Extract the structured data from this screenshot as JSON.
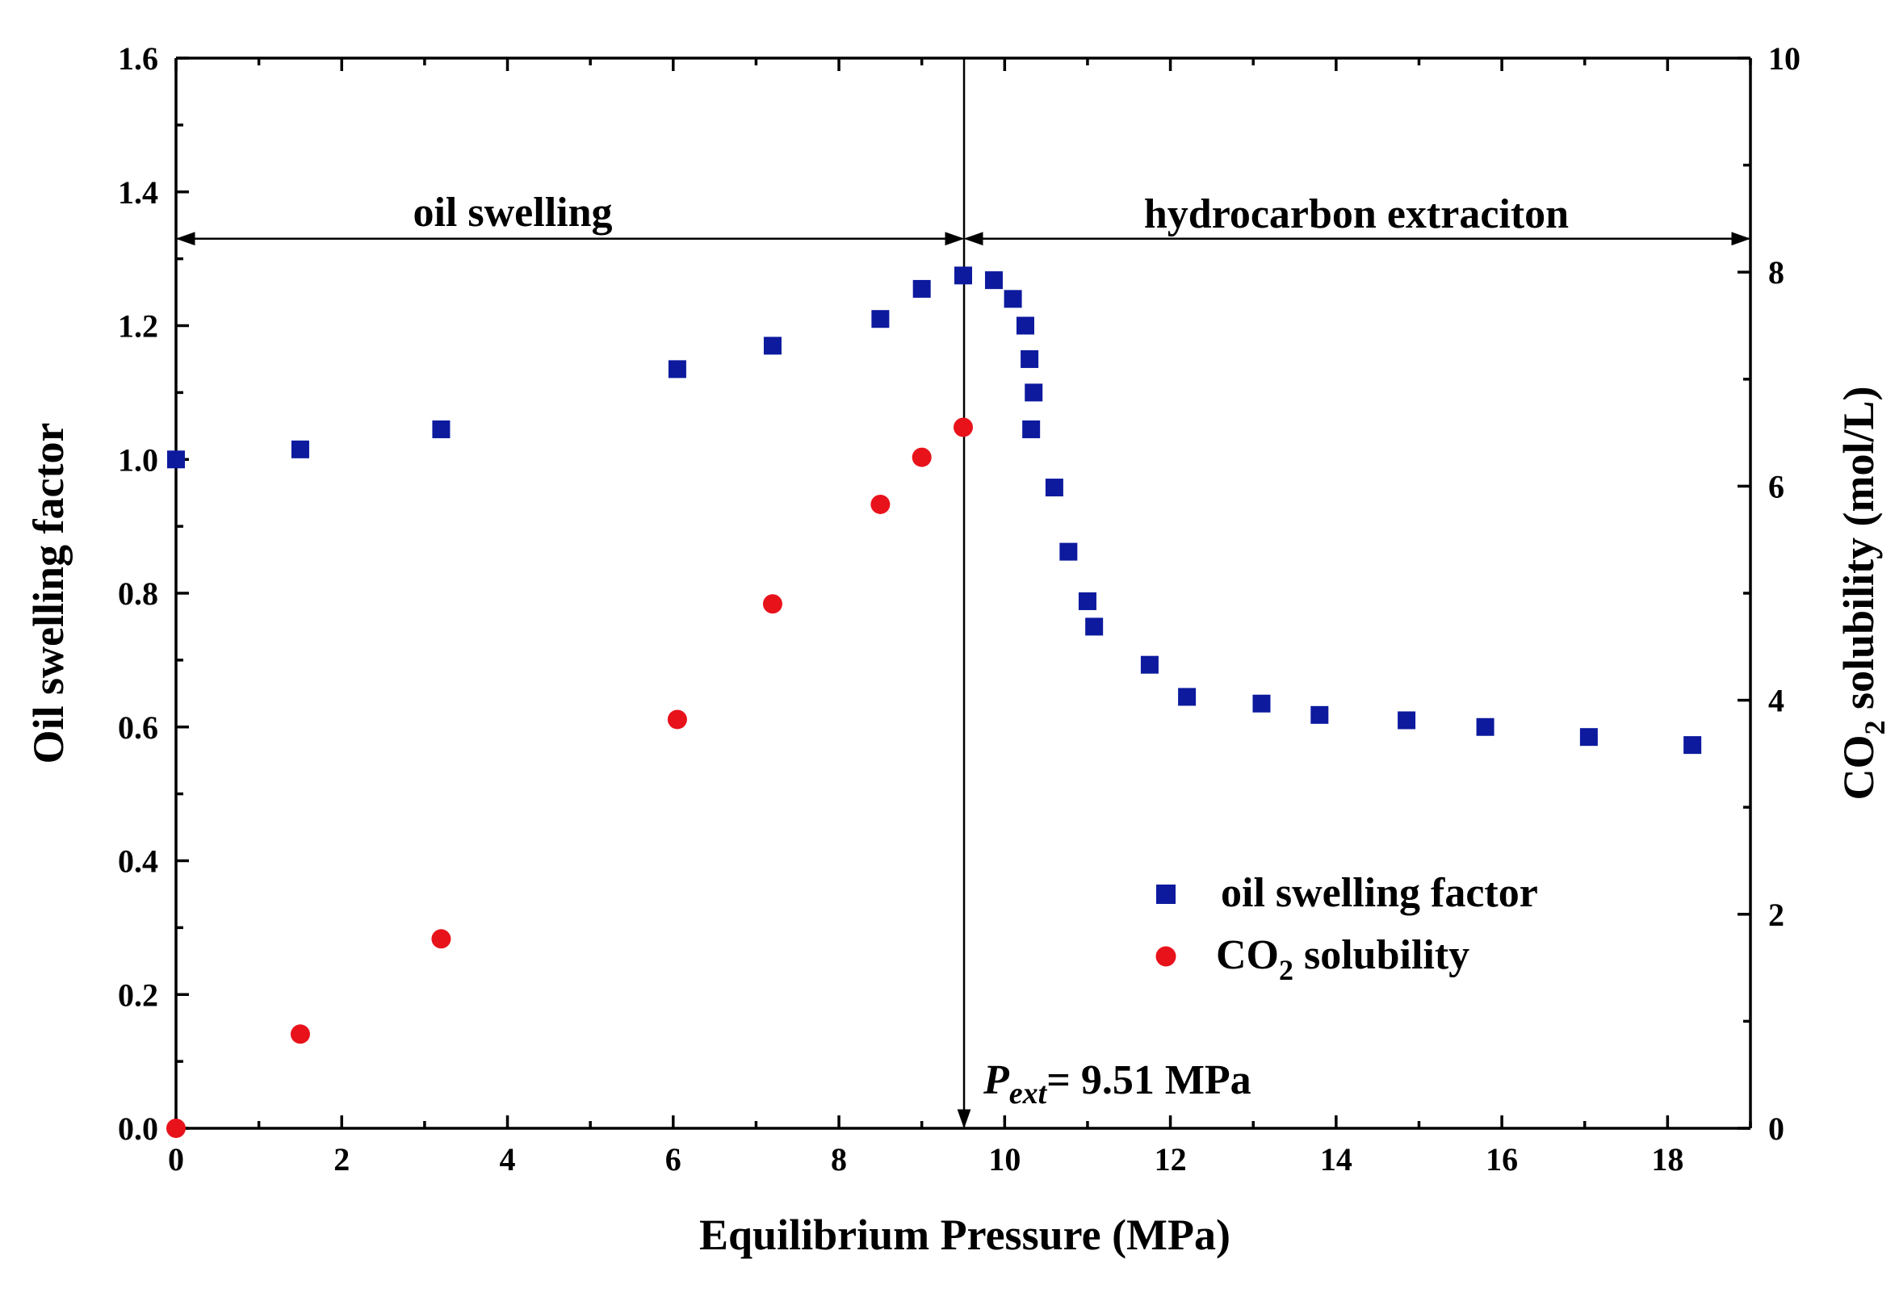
{
  "chart_data": {
    "type": "scatter",
    "xlabel": "Equilibrium Pressure (MPa)",
    "ylabel_left": "Oil swelling factor",
    "ylabel_right_prefix": "CO",
    "ylabel_right_sub": "2",
    "ylabel_right_suffix": " solubility (mol/L)",
    "xlim": [
      0,
      19
    ],
    "ylim_left": [
      0,
      1.6
    ],
    "ylim_right": [
      0,
      10
    ],
    "x_ticks": [
      "0",
      "2",
      "4",
      "6",
      "8",
      "10",
      "12",
      "14",
      "16",
      "18"
    ],
    "y_left_ticks": [
      "0.0",
      "0.2",
      "0.4",
      "0.6",
      "0.8",
      "1.0",
      "1.2",
      "1.4",
      "1.6"
    ],
    "y_right_ticks": [
      "0",
      "2",
      "4",
      "6",
      "8",
      "10"
    ],
    "colors": {
      "swelling": "#0d1a9e",
      "solubility": "#e8121b",
      "axis": "#000000"
    },
    "series": [
      {
        "name": "oil swelling factor",
        "axis": "left",
        "marker": "square",
        "x": [
          0,
          1.5,
          3.2,
          6.05,
          7.2,
          8.5,
          9.0,
          9.5,
          9.87,
          10.1,
          10.25,
          10.3,
          10.35,
          10.32,
          10.6,
          10.77,
          11.0,
          11.08,
          11.75,
          12.2,
          13.1,
          13.8,
          14.85,
          15.8,
          17.05,
          18.3
        ],
        "values": [
          1.0,
          1.015,
          1.045,
          1.135,
          1.17,
          1.21,
          1.255,
          1.275,
          1.268,
          1.24,
          1.2,
          1.15,
          1.1,
          1.045,
          0.958,
          0.862,
          0.788,
          0.75,
          0.693,
          0.645,
          0.635,
          0.618,
          0.61,
          0.6,
          0.585,
          0.573
        ]
      },
      {
        "name": "CO2 solubility",
        "axis": "right",
        "marker": "circle",
        "x": [
          0,
          1.5,
          3.2,
          6.05,
          7.2,
          8.5,
          9.0,
          9.5
        ],
        "values": [
          0,
          0.88,
          1.77,
          3.82,
          4.9,
          5.83,
          6.27,
          6.55
        ]
      }
    ],
    "legend": {
      "location": "lower-right",
      "entries": [
        {
          "label": "oil swelling factor"
        },
        {
          "label_prefix": "CO",
          "label_sub": "2",
          "label_suffix": " solubility"
        }
      ]
    },
    "annotations": {
      "region_left": "oil swelling",
      "region_right": "hydrocarbon extraciton",
      "region_arrow_y": 1.33,
      "p_ext_value": 9.51,
      "p_ext_symbol": "P",
      "p_ext_sub": "ext",
      "p_ext_text": "= 9.51 MPa"
    }
  }
}
